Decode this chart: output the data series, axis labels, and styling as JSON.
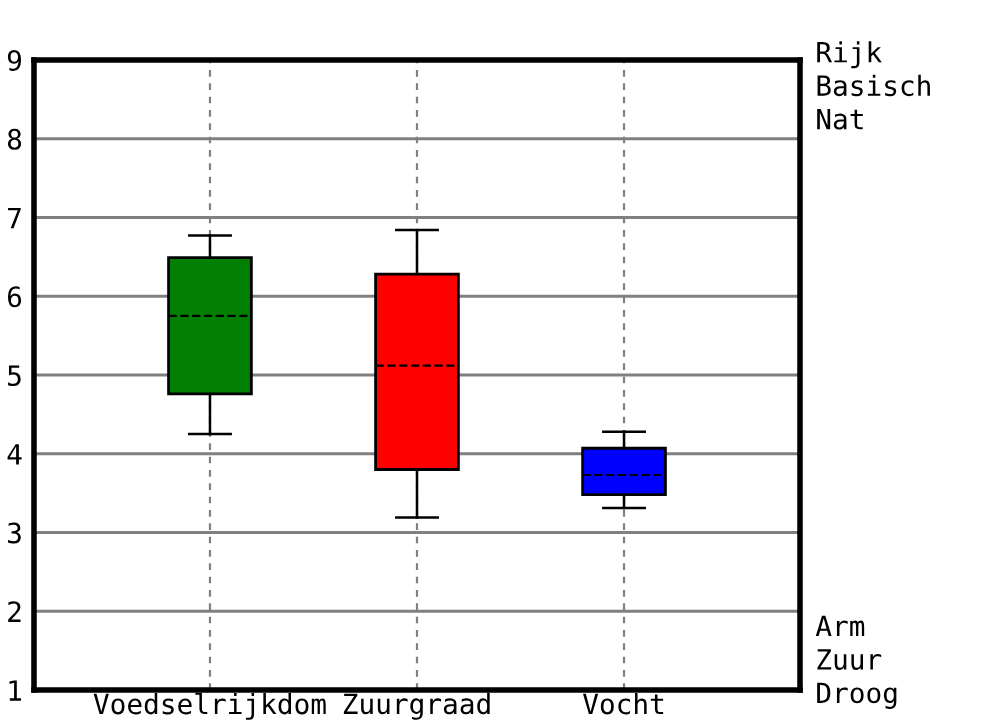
{
  "chart_data": {
    "type": "box",
    "categories": [
      "Voedselrijkdom",
      "Zuurgraad",
      "Vocht"
    ],
    "boxes": [
      {
        "low": 4.25,
        "q1": 4.76,
        "median": 5.75,
        "q3": 6.49,
        "high": 6.77
      },
      {
        "low": 3.19,
        "q1": 3.8,
        "median": 5.12,
        "q3": 6.28,
        "high": 6.84
      },
      {
        "low": 3.31,
        "q1": 3.48,
        "median": 3.73,
        "q3": 4.07,
        "high": 4.28
      }
    ],
    "colors": [
      "#007f00",
      "#ff0000",
      "#0000ff"
    ],
    "ylim": [
      1,
      9
    ],
    "yticks": [
      1,
      2,
      3,
      4,
      5,
      6,
      7,
      8,
      9
    ],
    "grid": true,
    "annotations": [
      "Rijk\nBasisch\nNat",
      "Arm\nZuur\nDroog"
    ]
  }
}
